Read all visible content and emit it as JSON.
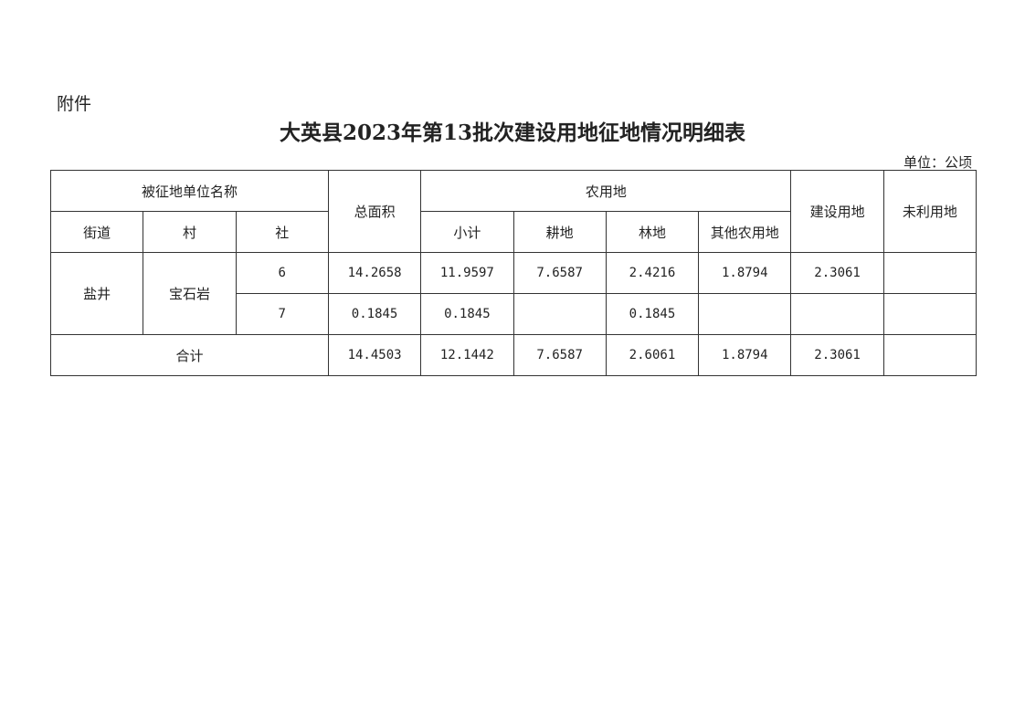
{
  "attachment_label": "附件",
  "title": "大英县2023年第13批次建设用地征地情况明细表",
  "unit": "单位：公顷",
  "table": {
    "headers": {
      "unit_name": "被征地单位名称",
      "street": "街道",
      "village": "村",
      "community": "社",
      "total_area": "总面积",
      "agricultural": "农用地",
      "subtotal": "小计",
      "cultivated": "耕地",
      "forest": "林地",
      "other_agricultural": "其他农用地",
      "construction": "建设用地",
      "unused": "未利用地"
    },
    "street": "盐井",
    "village": "宝石岩",
    "rows": [
      {
        "community": "6",
        "total_area": "14.2658",
        "subtotal": "11.9597",
        "cultivated": "7.6587",
        "forest": "2.4216",
        "other_agricultural": "1.8794",
        "construction": "2.3061",
        "unused": ""
      },
      {
        "community": "7",
        "total_area": "0.1845",
        "subtotal": "0.1845",
        "cultivated": "",
        "forest": "0.1845",
        "other_agricultural": "",
        "construction": "",
        "unused": ""
      }
    ],
    "total": {
      "label": "合计",
      "total_area": "14.4503",
      "subtotal": "12.1442",
      "cultivated": "7.6587",
      "forest": "2.6061",
      "other_agricultural": "1.8794",
      "construction": "2.3061",
      "unused": ""
    }
  }
}
